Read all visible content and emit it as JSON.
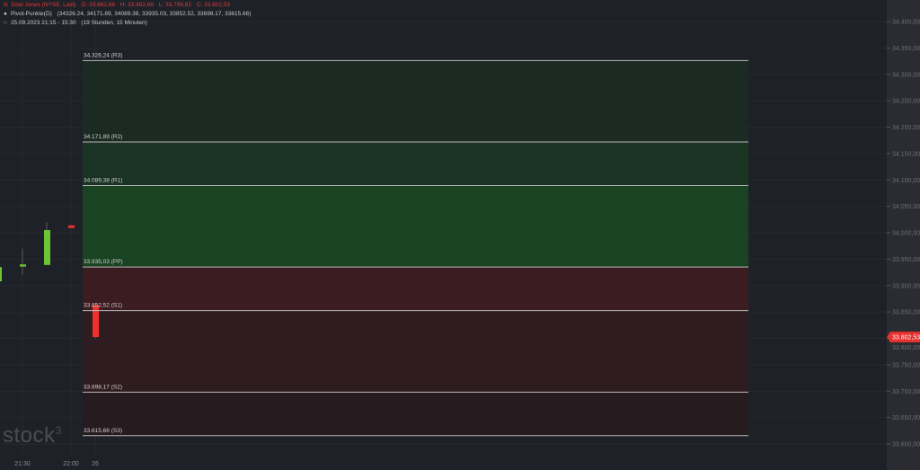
{
  "instrument": {
    "name": "Dow Jones (NYSE, Last)",
    "open": "O: 33.862,68",
    "high": "H: 33.862,68",
    "low": "L: 33.799,82",
    "close": "C: 33.802,53"
  },
  "indicator": {
    "label": "Pivot-Punkte(D)",
    "values": "(34326.24,  34171.89,  34089.38,  33935.03,  33852.52,  33698.17,  33615.66)"
  },
  "period": {
    "range": "25.09.2023 21:15 - 15:30",
    "duration": "(19 Stunden, 15 Minuten)"
  },
  "logo": "stock3",
  "colors": {
    "bg": "#1e2127",
    "axis_bg": "#2a2c31",
    "up": "#6cc532",
    "down": "#f0302c",
    "price_tag": "#e53030"
  },
  "chart_data": {
    "type": "candlestick",
    "ylim": [
      33580,
      34440
    ],
    "yticks": [
      "34.400,00",
      "34.350,00",
      "34.300,00",
      "34.250,00",
      "34.200,00",
      "34.150,00",
      "34.100,00",
      "34.050,00",
      "34.000,00",
      "33.950,00",
      "33.900,00",
      "33.850,00",
      "33.800,00",
      "33.750,00",
      "33.700,00",
      "33.650,00",
      "33.600,00"
    ],
    "ytick_values": [
      34400,
      34350,
      34300,
      34250,
      34200,
      34150,
      34100,
      34050,
      34000,
      33950,
      33900,
      33850,
      33800,
      33750,
      33700,
      33650,
      33600
    ],
    "xticks": [
      {
        "label": "21:30",
        "slot": 1
      },
      {
        "label": "22:00",
        "slot": 3
      },
      {
        "label": "26",
        "slot": 4
      }
    ],
    "candles": [
      {
        "time": "21:15",
        "open": 33935,
        "high": 33938,
        "low": 33905,
        "close": 33908,
        "dir": "up"
      },
      {
        "time": "21:30",
        "open": 33936,
        "high": 33970,
        "low": 33920,
        "close": 33940,
        "dir": "up"
      },
      {
        "time": "21:45",
        "open": 33939,
        "high": 34020,
        "low": 33939,
        "close": 34005,
        "dir": "up"
      },
      {
        "time": "22:00",
        "open": 34014,
        "high": 34014,
        "low": 34009,
        "close": 34009,
        "dir": "down"
      },
      {
        "time": "15:30",
        "open": 33862.68,
        "high": 33862.68,
        "low": 33799.82,
        "close": 33802.53,
        "dir": "down"
      }
    ],
    "last_price": {
      "value": 33802.53,
      "label": "33.802,53"
    },
    "pivots": [
      {
        "name": "R3",
        "value": 34326.24,
        "label": "34.326,24 (R3)"
      },
      {
        "name": "R2",
        "value": 34171.89,
        "label": "34.171,89 (R2)"
      },
      {
        "name": "R1",
        "value": 34089.38,
        "label": "34.089,38 (R1)"
      },
      {
        "name": "PP",
        "value": 33935.03,
        "label": "33.935,03 (PP)"
      },
      {
        "name": "S1",
        "value": 33852.52,
        "label": "33.852,52 (S1)"
      },
      {
        "name": "S2",
        "value": 33698.17,
        "label": "33.698,17 (S2)"
      },
      {
        "name": "S3",
        "value": 33615.66,
        "label": "33.615,66 (S3)"
      }
    ],
    "zone_colors": [
      "#1b2a22",
      "#1b3322",
      "#1a4322",
      "#3b1c20",
      "#2f1c20",
      "#261c20"
    ]
  }
}
